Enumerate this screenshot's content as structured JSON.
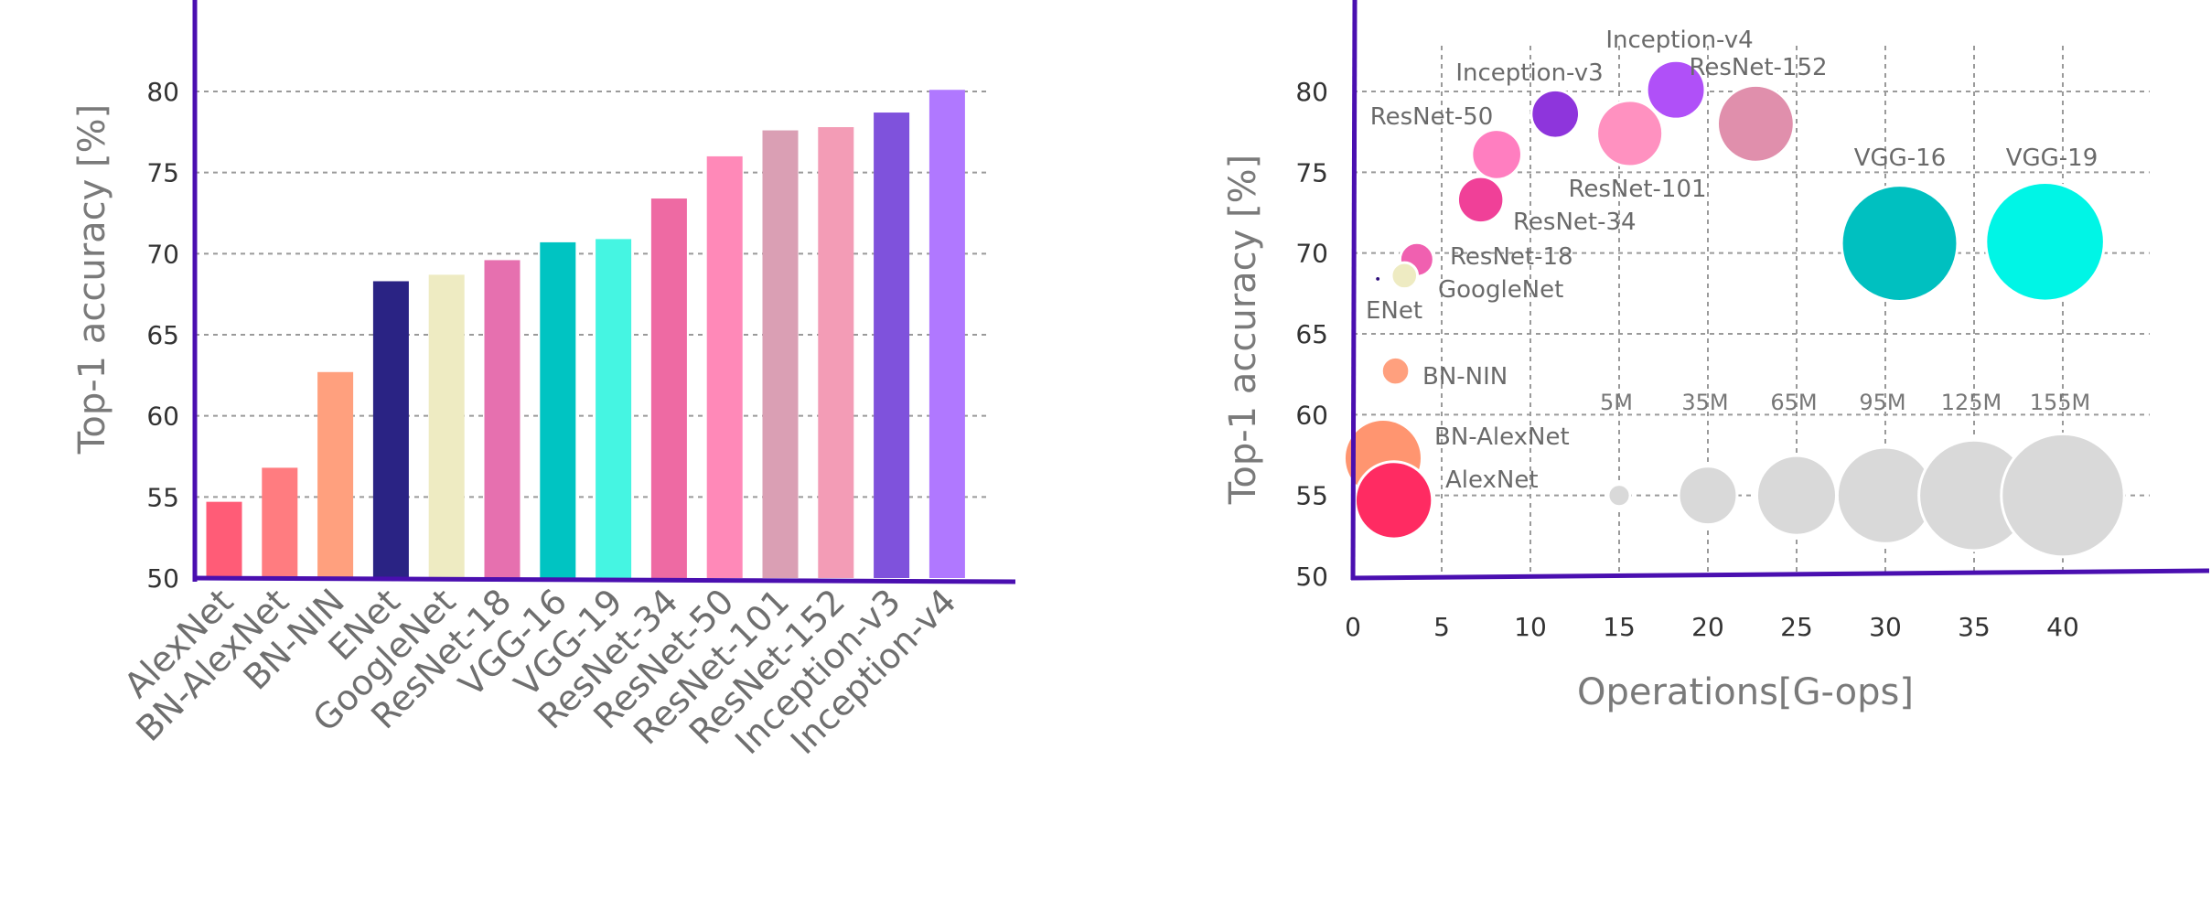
{
  "chart_data": [
    {
      "type": "bar",
      "ylabel": "Top-1 accuracy [%]",
      "ylim": [
        50,
        80
      ],
      "yticks": [
        50,
        55,
        60,
        65,
        70,
        75,
        80
      ],
      "grid": true,
      "categories": [
        "AlexNet",
        "BN-AlexNet",
        "BN-NIN",
        "ENet",
        "GoogleNet",
        "ResNet-18",
        "VGG-16",
        "VGG-19",
        "ResNet-34",
        "ResNet-50",
        "ResNet-101",
        "ResNet-152",
        "Inception-v3",
        "Inception-v4"
      ],
      "values": [
        54.7,
        56.8,
        62.7,
        68.3,
        68.7,
        69.6,
        70.7,
        70.9,
        73.4,
        76.0,
        77.6,
        77.8,
        78.7,
        80.1
      ],
      "colors": [
        "#ff5c77",
        "#ff7c80",
        "#ffa07e",
        "#2a2384",
        "#eeebc2",
        "#e670af",
        "#00c4c2",
        "#45f5e2",
        "#ee6aa3",
        "#ff89b8",
        "#da9fb4",
        "#f39cb6",
        "#7f52dc",
        "#b078ff"
      ]
    },
    {
      "type": "scatter",
      "xlabel": "Operations[G-ops]",
      "ylabel": "Top-1 accuracy [%]",
      "xlim": [
        0,
        45
      ],
      "ylim": [
        50,
        80
      ],
      "xticks": [
        0,
        5,
        10,
        15,
        20,
        25,
        30,
        35,
        40
      ],
      "yticks": [
        50,
        55,
        60,
        65,
        70,
        75,
        80
      ],
      "grid": true,
      "points": [
        {
          "label": "AlexNet",
          "x": 2.3,
          "y": 54.7,
          "size": 61,
          "color": "#ff2b62"
        },
        {
          "label": "BN-AlexNet",
          "x": 1.7,
          "y": 57.3,
          "size": 62,
          "color": "#ff9570"
        },
        {
          "label": "BN-NIN",
          "x": 2.4,
          "y": 62.7,
          "size": 8,
          "color": "#ffa07e"
        },
        {
          "label": "ENet",
          "x": 1.4,
          "y": 68.4,
          "size": 0.4,
          "color": "#2e0d7a"
        },
        {
          "label": "GoogleNet",
          "x": 2.9,
          "y": 68.6,
          "size": 7,
          "color": "#eeebc2"
        },
        {
          "label": "ResNet-18",
          "x": 3.6,
          "y": 69.6,
          "size": 11.7,
          "color": "#f060b0"
        },
        {
          "label": "ResNet-34",
          "x": 7.2,
          "y": 73.3,
          "size": 21.8,
          "color": "#f04098"
        },
        {
          "label": "ResNet-50",
          "x": 8.1,
          "y": 76.1,
          "size": 25.6,
          "color": "#ff7ec0"
        },
        {
          "label": "ResNet-101",
          "x": 15.6,
          "y": 77.4,
          "size": 44.5,
          "color": "#ff91c0"
        },
        {
          "label": "ResNet-152",
          "x": 22.7,
          "y": 78.0,
          "size": 60.2,
          "color": "#e08fac"
        },
        {
          "label": "Inception-v3",
          "x": 11.4,
          "y": 78.6,
          "size": 23.8,
          "color": "#8e35dc"
        },
        {
          "label": "Inception-v4",
          "x": 18.2,
          "y": 80.1,
          "size": 35,
          "color": "#b050f8"
        },
        {
          "label": "VGG-16",
          "x": 30.8,
          "y": 70.6,
          "size": 138,
          "color": "#00c0c0"
        },
        {
          "label": "VGG-19",
          "x": 39.0,
          "y": 70.7,
          "size": 144,
          "color": "#00f5e6"
        }
      ],
      "size_legend": [
        {
          "label": "5M",
          "x": 15,
          "y": 55,
          "size": 5
        },
        {
          "label": "35M",
          "x": 20,
          "y": 55,
          "size": 35
        },
        {
          "label": "65M",
          "x": 25,
          "y": 55,
          "size": 65
        },
        {
          "label": "95M",
          "x": 30,
          "y": 55,
          "size": 95
        },
        {
          "label": "125M",
          "x": 35,
          "y": 55,
          "size": 125
        },
        {
          "label": "155M",
          "x": 40,
          "y": 55,
          "size": 155
        }
      ]
    }
  ]
}
